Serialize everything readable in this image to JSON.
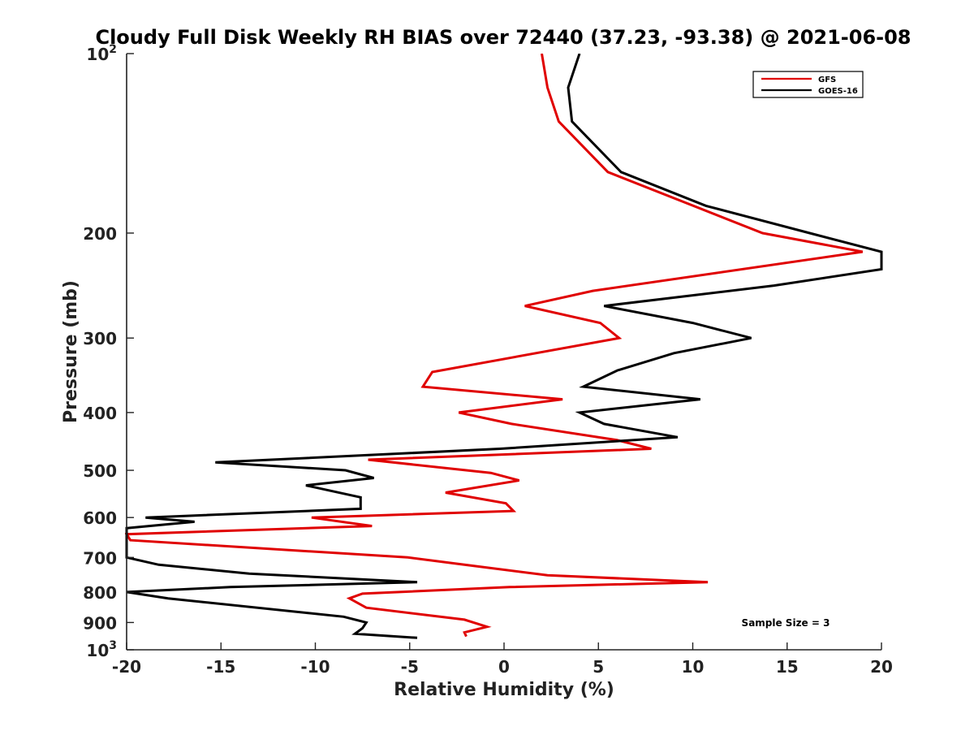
{
  "chart_data": {
    "type": "line",
    "title": "Cloudy Full Disk Weekly RH BIAS over 72440 (37.23, -93.38) @ 2021-06-08",
    "xlabel": "Relative Humidity (%)",
    "ylabel": "Pressure (mb)",
    "xlim": [
      -20,
      20
    ],
    "ylim": [
      100,
      1000
    ],
    "yscale": "log",
    "y_reversed": true,
    "x_ticks": [
      "-20",
      "-15",
      "-10",
      "-5",
      "0",
      "5",
      "10",
      "15",
      "20"
    ],
    "y_ticks": [
      {
        "value": 100,
        "base": "10",
        "exp": "2"
      },
      {
        "value": 200,
        "label": "200"
      },
      {
        "value": 300,
        "label": "300"
      },
      {
        "value": 400,
        "label": "400"
      },
      {
        "value": 500,
        "label": "500"
      },
      {
        "value": 600,
        "label": "600"
      },
      {
        "value": 700,
        "label": "700"
      },
      {
        "value": 800,
        "label": "800"
      },
      {
        "value": 900,
        "label": "900"
      },
      {
        "value": 1000,
        "base": "10",
        "exp": "3"
      }
    ],
    "legend_position": "top-right",
    "grid": false,
    "annotation": "Sample Size = 3",
    "series": [
      {
        "name": "GFS",
        "color": "#e00000",
        "points": [
          [
            2.0,
            100
          ],
          [
            2.3,
            114
          ],
          [
            2.9,
            130
          ],
          [
            5.5,
            158
          ],
          [
            13.7,
            200
          ],
          [
            19.0,
            215
          ],
          [
            4.7,
            250
          ],
          [
            1.1,
            265
          ],
          [
            5.1,
            283
          ],
          [
            6.1,
            300
          ],
          [
            -3.8,
            342
          ],
          [
            -4.3,
            362
          ],
          [
            3.1,
            380
          ],
          [
            -2.4,
            400
          ],
          [
            0.4,
            418
          ],
          [
            6.0,
            445
          ],
          [
            7.8,
            460
          ],
          [
            -7.2,
            480
          ],
          [
            -0.7,
            505
          ],
          [
            0.8,
            520
          ],
          [
            -3.1,
            545
          ],
          [
            0.1,
            568
          ],
          [
            0.5,
            585
          ],
          [
            -10.2,
            600
          ],
          [
            -7.0,
            620
          ],
          [
            -20.0,
            640
          ],
          [
            -19.8,
            655
          ],
          [
            -5.1,
            700
          ],
          [
            -2.1,
            720
          ],
          [
            2.3,
            750
          ],
          [
            10.8,
            770
          ],
          [
            0.3,
            785
          ],
          [
            -7.5,
            805
          ],
          [
            -8.2,
            820
          ],
          [
            -7.3,
            850
          ],
          [
            -2.1,
            890
          ],
          [
            -0.9,
            915
          ],
          [
            -2.1,
            935
          ],
          [
            -2.0,
            950
          ]
        ]
      },
      {
        "name": "GOES-16",
        "color": "#000000",
        "points": [
          [
            4.0,
            100
          ],
          [
            3.4,
            114
          ],
          [
            3.6,
            130
          ],
          [
            6.2,
            158
          ],
          [
            10.7,
            180
          ],
          [
            16.2,
            200
          ],
          [
            20.0,
            215
          ],
          [
            20.0,
            230
          ],
          [
            14.3,
            245
          ],
          [
            5.3,
            265
          ],
          [
            10.0,
            283
          ],
          [
            13.1,
            300
          ],
          [
            9.0,
            318
          ],
          [
            6.0,
            340
          ],
          [
            4.2,
            362
          ],
          [
            10.4,
            380
          ],
          [
            4.0,
            400
          ],
          [
            5.3,
            418
          ],
          [
            9.2,
            440
          ],
          [
            -0.2,
            460
          ],
          [
            -15.3,
            485
          ],
          [
            -8.4,
            500
          ],
          [
            -6.9,
            515
          ],
          [
            -10.5,
            530
          ],
          [
            -7.6,
            555
          ],
          [
            -7.6,
            580
          ],
          [
            -19.0,
            600
          ],
          [
            -16.4,
            610
          ],
          [
            -20.0,
            625
          ],
          [
            -20.0,
            700
          ],
          [
            -18.3,
            720
          ],
          [
            -13.5,
            745
          ],
          [
            -4.6,
            770
          ],
          [
            -14.5,
            785
          ],
          [
            -20.0,
            800
          ],
          [
            -17.8,
            820
          ],
          [
            -8.5,
            880
          ],
          [
            -7.3,
            900
          ],
          [
            -7.5,
            920
          ],
          [
            -7.9,
            940
          ],
          [
            -4.6,
            955
          ]
        ]
      }
    ]
  }
}
